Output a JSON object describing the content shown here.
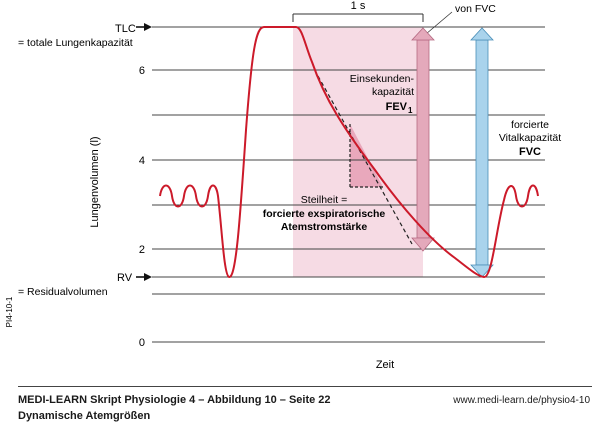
{
  "labels": {
    "tlc": "TLC",
    "tlc_long": "= totale Lungenkapazität",
    "rv": "RV",
    "rv_long": "= Residualvolumen",
    "y_axis": "Lungenvolumen (l)",
    "x_axis": "Zeit",
    "one_second": "1 s",
    "von_fvc": "von FVC",
    "fev_line1": "Einsekunden-",
    "fev_line2": "kapazität",
    "fev_main": "FEV",
    "fev_sub": "1",
    "fvc_line1": "forcierte",
    "fvc_line2": "Vitalkapazität",
    "fvc_abbr": "FVC",
    "slope_line1": "Steilheit =",
    "slope_line2": "forcierte exspiratorische",
    "slope_line3": "Atemstromstärke",
    "figure_id": "PI4-10-1"
  },
  "y_ticks": [
    "0",
    "2",
    "4",
    "6"
  ],
  "footer": {
    "title": "MEDI-LEARN Skript Physiologie 4 – Abbildung 10 – Seite 22",
    "subtitle": "Dynamische Atemgrößen",
    "url": "www.medi-learn.de/physio4-10"
  },
  "colors": {
    "curve": "#cc1a2a",
    "band": "#f6dbe4",
    "fev_arrow": "#e4a9bb",
    "fvc_arrow": "#a9d3ec",
    "footer_rule": "#444444"
  }
}
